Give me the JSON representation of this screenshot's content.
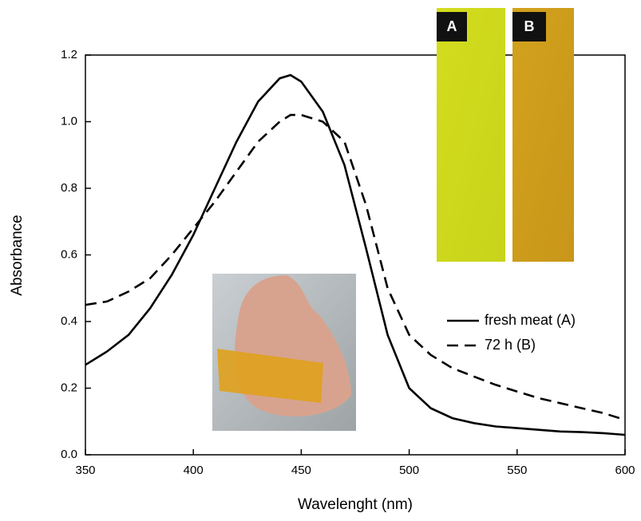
{
  "chart_data": {
    "type": "line",
    "x_label": "Wavelenght (nm)",
    "y_label": "Absorbance",
    "x": [
      350,
      360,
      370,
      380,
      390,
      400,
      410,
      420,
      430,
      440,
      445,
      450,
      460,
      470,
      480,
      490,
      500,
      510,
      520,
      530,
      540,
      550,
      560,
      570,
      580,
      590,
      600
    ],
    "series": [
      {
        "name": "fresh meat (A)",
        "color": "#000000",
        "linestyle": "solid",
        "values": [
          0.27,
          0.31,
          0.36,
          0.44,
          0.54,
          0.66,
          0.8,
          0.94,
          1.06,
          1.13,
          1.14,
          1.12,
          1.03,
          0.87,
          0.62,
          0.36,
          0.2,
          0.14,
          0.11,
          0.095,
          0.085,
          0.08,
          0.075,
          0.07,
          0.068,
          0.065,
          0.06
        ]
      },
      {
        "name": "72 h (B)",
        "color": "#000000",
        "linestyle": "dashed",
        "values": [
          0.45,
          0.46,
          0.49,
          0.53,
          0.6,
          0.68,
          0.76,
          0.85,
          0.94,
          1.0,
          1.02,
          1.02,
          1.0,
          0.94,
          0.75,
          0.5,
          0.36,
          0.3,
          0.26,
          0.235,
          0.21,
          0.19,
          0.17,
          0.155,
          0.14,
          0.125,
          0.105
        ]
      }
    ],
    "xlim": [
      350,
      600
    ],
    "xticks": [
      350,
      400,
      450,
      500,
      550,
      600
    ],
    "ylim": [
      0,
      1.2
    ],
    "yticks": [
      {
        "value": 0,
        "label": "0.0"
      },
      0.2,
      0.4,
      0.6,
      0.8,
      {
        "value": 1,
        "label": "1.0"
      },
      1.2
    ],
    "legend": "right",
    "annotations": [
      "A",
      "B"
    ]
  }
}
